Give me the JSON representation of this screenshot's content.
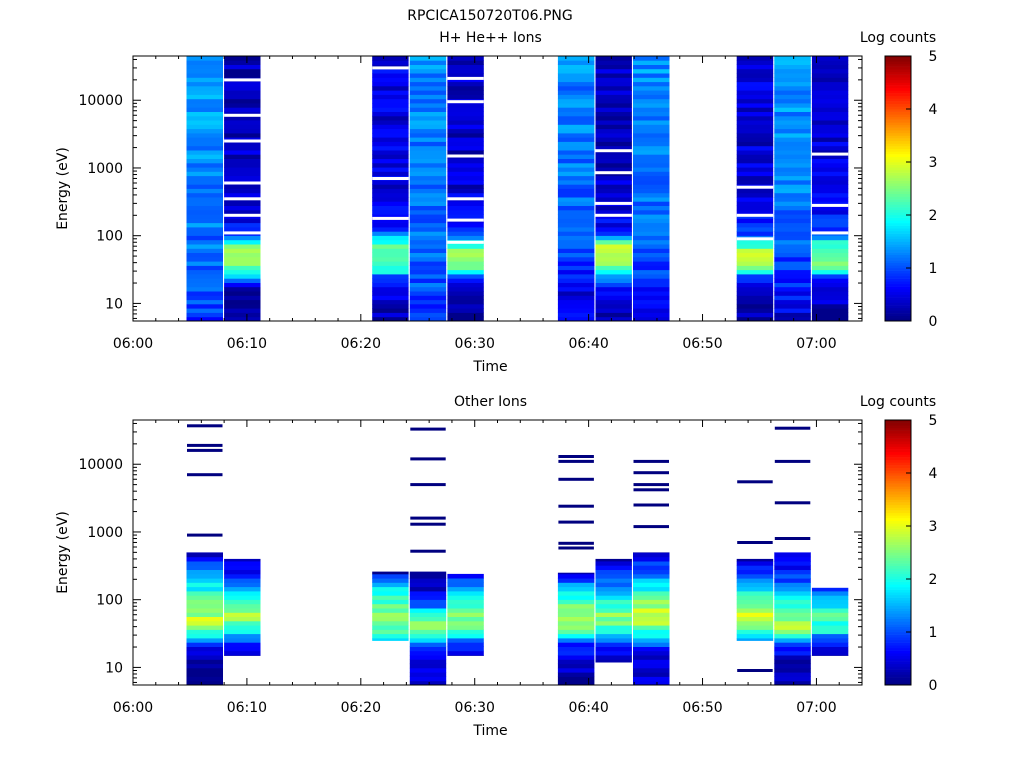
{
  "figure_title": "RPCICA150720T06.PNG",
  "chart_data": [
    {
      "type": "heatmap",
      "title": "H+ He++ Ions",
      "xlabel": "Time",
      "ylabel": "Energy (eV)",
      "x_ticks": [
        "06:00",
        "06:10",
        "06:20",
        "06:30",
        "06:40",
        "06:50",
        "07:00"
      ],
      "xlim_minutes": [
        0,
        64
      ],
      "y_scale": "log",
      "ylim": [
        5.5,
        45000
      ],
      "y_ticks": [
        {
          "value": 10,
          "label": "10"
        },
        {
          "value": 100,
          "label": "100"
        },
        {
          "value": 1000,
          "label": "1000"
        },
        {
          "value": 10000,
          "label": "10000"
        }
      ],
      "colorbar": {
        "label": "Log counts",
        "min": 0,
        "max": 5,
        "ticks": [
          "0",
          "1",
          "2",
          "3",
          "4",
          "5"
        ],
        "colormap": "jet"
      },
      "blocks": [
        {
          "start": "06:04.7",
          "end": "06:07.9",
          "profile": [
            [
              6,
              0.9
            ],
            [
              9,
              1.0
            ],
            [
              15,
              1.05
            ],
            [
              25,
              1.0
            ],
            [
              35,
              1.1
            ],
            [
              50,
              1.2
            ],
            [
              80,
              1.15
            ],
            [
              200,
              1.25
            ],
            [
              1000,
              1.3
            ],
            [
              5000,
              1.35
            ],
            [
              45000,
              1.4
            ]
          ],
          "gaps": []
        },
        {
          "start": "06:08.0",
          "end": "06:11.2",
          "profile": [
            [
              6,
              0.1
            ],
            [
              15,
              0.2
            ],
            [
              20,
              0.5
            ],
            [
              25,
              1.5
            ],
            [
              30,
              2.3
            ],
            [
              45,
              2.75
            ],
            [
              65,
              2.6
            ],
            [
              90,
              1.8
            ],
            [
              110,
              0.7
            ],
            [
              300,
              0.4
            ],
            [
              3000,
              0.3
            ],
            [
              45000,
              0.25
            ]
          ],
          "gaps": [
            20000,
            6000,
            2500,
            600,
            350,
            200,
            110
          ]
        },
        {
          "start": "06:21.0",
          "end": "06:24.2",
          "profile": [
            [
              6,
              0.3
            ],
            [
              15,
              0.4
            ],
            [
              25,
              0.9
            ],
            [
              30,
              2.0
            ],
            [
              45,
              2.5
            ],
            [
              60,
              2.45
            ],
            [
              80,
              2.1
            ],
            [
              100,
              1.4
            ],
            [
              130,
              0.8
            ],
            [
              300,
              0.5
            ],
            [
              3000,
              0.45
            ],
            [
              45000,
              0.5
            ]
          ],
          "gaps": [
            30000,
            700,
            180
          ]
        },
        {
          "start": "06:24.3",
          "end": "06:27.5",
          "profile": [
            [
              6,
              0.9
            ],
            [
              15,
              1.0
            ],
            [
              30,
              1.1
            ],
            [
              60,
              1.2
            ],
            [
              100,
              1.1
            ],
            [
              300,
              1.15
            ],
            [
              1000,
              1.2
            ],
            [
              5000,
              1.25
            ],
            [
              45000,
              1.3
            ]
          ],
          "gaps": []
        },
        {
          "start": "06:27.6",
          "end": "06:30.8",
          "profile": [
            [
              6,
              0.1
            ],
            [
              15,
              0.2
            ],
            [
              25,
              1.0
            ],
            [
              30,
              2.2
            ],
            [
              45,
              2.7
            ],
            [
              60,
              2.6
            ],
            [
              80,
              2.0
            ],
            [
              100,
              1.0
            ],
            [
              300,
              0.45
            ],
            [
              3000,
              0.35
            ],
            [
              45000,
              0.35
            ]
          ],
          "gaps": [
            21000,
            9500,
            1500,
            350,
            170,
            80
          ]
        },
        {
          "start": "06:37.3",
          "end": "06:40.5",
          "profile": [
            [
              6,
              0.6
            ],
            [
              15,
              0.5
            ],
            [
              30,
              0.8
            ],
            [
              60,
              1.0
            ],
            [
              100,
              1.0
            ],
            [
              300,
              1.1
            ],
            [
              1000,
              1.2
            ],
            [
              5000,
              1.25
            ],
            [
              45000,
              1.3
            ]
          ],
          "gaps": []
        },
        {
          "start": "06:40.6",
          "end": "06:43.8",
          "profile": [
            [
              6,
              0.2
            ],
            [
              10,
              0.4
            ],
            [
              20,
              0.8
            ],
            [
              30,
              2.0
            ],
            [
              40,
              2.6
            ],
            [
              70,
              2.65
            ],
            [
              90,
              1.7
            ],
            [
              120,
              0.7
            ],
            [
              300,
              0.35
            ],
            [
              3000,
              0.3
            ],
            [
              45000,
              0.3
            ]
          ],
          "gaps": [
            1800,
            850,
            300,
            200
          ]
        },
        {
          "start": "06:43.9",
          "end": "06:47.1",
          "profile": [
            [
              6,
              0.6
            ],
            [
              15,
              0.7
            ],
            [
              30,
              0.9
            ],
            [
              60,
              1.05
            ],
            [
              100,
              1.15
            ],
            [
              300,
              1.2
            ],
            [
              1000,
              1.25
            ],
            [
              5000,
              1.3
            ],
            [
              45000,
              1.35
            ]
          ],
          "gaps": []
        },
        {
          "start": "06:53.0",
          "end": "06:56.2",
          "profile": [
            [
              6,
              0.2
            ],
            [
              15,
              0.4
            ],
            [
              25,
              1.0
            ],
            [
              30,
              2.3
            ],
            [
              45,
              3.0
            ],
            [
              60,
              2.7
            ],
            [
              80,
              1.8
            ],
            [
              100,
              1.0
            ],
            [
              300,
              0.5
            ],
            [
              3000,
              0.4
            ],
            [
              45000,
              0.45
            ]
          ],
          "gaps": [
            520,
            200,
            90
          ]
        },
        {
          "start": "06:56.3",
          "end": "06:59.5",
          "profile": [
            [
              6,
              0.4
            ],
            [
              15,
              0.7
            ],
            [
              30,
              0.9
            ],
            [
              60,
              1.0
            ],
            [
              100,
              1.1
            ],
            [
              300,
              1.2
            ],
            [
              1000,
              1.3
            ],
            [
              5000,
              1.35
            ],
            [
              45000,
              1.4
            ]
          ],
          "gaps": []
        },
        {
          "start": "06:59.6",
          "end": "07:02.8",
          "profile": [
            [
              6,
              0.2
            ],
            [
              15,
              0.4
            ],
            [
              25,
              1.0
            ],
            [
              30,
              2.2
            ],
            [
              45,
              2.5
            ],
            [
              60,
              2.4
            ],
            [
              80,
              1.9
            ],
            [
              100,
              1.1
            ],
            [
              300,
              0.5
            ],
            [
              3000,
              0.4
            ],
            [
              45000,
              0.45
            ]
          ],
          "gaps": [
            1600,
            280,
            110
          ]
        }
      ]
    },
    {
      "type": "heatmap",
      "title": "Other Ions",
      "xlabel": "Time",
      "ylabel": "Energy (eV)",
      "x_ticks": [
        "06:00",
        "06:10",
        "06:20",
        "06:30",
        "06:40",
        "06:50",
        "07:00"
      ],
      "xlim_minutes": [
        0,
        64
      ],
      "y_scale": "log",
      "ylim": [
        5.5,
        45000
      ],
      "y_ticks": [
        {
          "value": 10,
          "label": "10"
        },
        {
          "value": 100,
          "label": "100"
        },
        {
          "value": 1000,
          "label": "1000"
        },
        {
          "value": 10000,
          "label": "10000"
        }
      ],
      "colorbar": {
        "label": "Log counts",
        "min": 0,
        "max": 5,
        "ticks": [
          "0",
          "1",
          "2",
          "3",
          "4",
          "5"
        ],
        "colormap": "jet"
      },
      "blocks": [
        {
          "start": "06:04.7",
          "end": "06:07.9",
          "range": [
            5.5,
            500
          ],
          "profile": [
            [
              6,
              0.1
            ],
            [
              12,
              0.3
            ],
            [
              20,
              0.6
            ],
            [
              25,
              1.3
            ],
            [
              35,
              2.2
            ],
            [
              50,
              2.8
            ],
            [
              100,
              2.3
            ],
            [
              200,
              1.6
            ],
            [
              350,
              0.8
            ],
            [
              500,
              0.3
            ]
          ],
          "lines": [
            37000,
            19000,
            16000,
            7000,
            900
          ]
        },
        {
          "start": "06:08.0",
          "end": "06:11.2",
          "range": [
            15,
            400
          ],
          "profile": [
            [
              15,
              0.2
            ],
            [
              25,
              1.0
            ],
            [
              35,
              2.2
            ],
            [
              60,
              2.6
            ],
            [
              100,
              2.2
            ],
            [
              200,
              1.0
            ],
            [
              400,
              0.3
            ]
          ],
          "lines": []
        },
        {
          "start": "06:21.0",
          "end": "06:24.2",
          "range": [
            25,
            260
          ],
          "profile": [
            [
              25,
              1.5
            ],
            [
              40,
              2.4
            ],
            [
              70,
              2.5
            ],
            [
              120,
              2.0
            ],
            [
              200,
              1.2
            ],
            [
              260,
              0.3
            ]
          ],
          "lines": []
        },
        {
          "start": "06:24.3",
          "end": "06:27.5",
          "range": [
            5.5,
            260
          ],
          "profile": [
            [
              6,
              0.4
            ],
            [
              15,
              0.6
            ],
            [
              25,
              1.5
            ],
            [
              40,
              2.9
            ],
            [
              60,
              2.2
            ],
            [
              100,
              0.6
            ],
            [
              180,
              0.3
            ],
            [
              260,
              0.2
            ]
          ],
          "lines": [
            33000,
            12000,
            5000,
            1600,
            1300,
            520
          ]
        },
        {
          "start": "06:27.6",
          "end": "06:30.8",
          "range": [
            15,
            240
          ],
          "profile": [
            [
              15,
              0.2
            ],
            [
              25,
              1.2
            ],
            [
              35,
              2.3
            ],
            [
              60,
              2.6
            ],
            [
              120,
              1.8
            ],
            [
              240,
              0.5
            ]
          ],
          "lines": []
        },
        {
          "start": "06:37.3",
          "end": "06:40.5",
          "range": [
            5.5,
            250
          ],
          "profile": [
            [
              6,
              0.2
            ],
            [
              12,
              0.3
            ],
            [
              25,
              1.0
            ],
            [
              35,
              2.5
            ],
            [
              55,
              2.8
            ],
            [
              100,
              2.1
            ],
            [
              200,
              1.0
            ],
            [
              250,
              0.4
            ]
          ],
          "lines": [
            13000,
            11000,
            6000,
            2400,
            1400,
            680,
            580
          ]
        },
        {
          "start": "06:40.6",
          "end": "06:43.8",
          "range": [
            12,
            400
          ],
          "profile": [
            [
              12,
              0.2
            ],
            [
              25,
              1.0
            ],
            [
              35,
              2.2
            ],
            [
              60,
              2.6
            ],
            [
              100,
              2.0
            ],
            [
              200,
              1.0
            ],
            [
              400,
              0.3
            ]
          ],
          "lines": []
        },
        {
          "start": "06:43.9",
          "end": "06:47.1",
          "range": [
            5.5,
            500
          ],
          "profile": [
            [
              6,
              0.4
            ],
            [
              15,
              0.3
            ],
            [
              25,
              1.2
            ],
            [
              40,
              2.6
            ],
            [
              70,
              2.9
            ],
            [
              120,
              2.1
            ],
            [
              300,
              1.0
            ],
            [
              500,
              0.3
            ]
          ],
          "lines": [
            11000,
            7500,
            5000,
            4200,
            2500,
            1200
          ]
        },
        {
          "start": "06:53.0",
          "end": "06:56.2",
          "range": [
            25,
            400
          ],
          "profile": [
            [
              25,
              1.3
            ],
            [
              35,
              2.4
            ],
            [
              60,
              2.8
            ],
            [
              100,
              2.2
            ],
            [
              250,
              1.0
            ],
            [
              400,
              0.3
            ]
          ],
          "lines": [
            5500,
            700,
            9
          ]
        },
        {
          "start": "06:56.3",
          "end": "06:59.5",
          "range": [
            5.5,
            500
          ],
          "profile": [
            [
              6,
              0.2
            ],
            [
              15,
              0.4
            ],
            [
              25,
              1.2
            ],
            [
              35,
              2.7
            ],
            [
              60,
              2.5
            ],
            [
              120,
              1.6
            ],
            [
              300,
              0.6
            ],
            [
              500,
              0.3
            ]
          ],
          "lines": [
            34000,
            11000,
            2700,
            800
          ]
        },
        {
          "start": "06:59.6",
          "end": "07:02.8",
          "range": [
            15,
            150
          ],
          "profile": [
            [
              15,
              0.2
            ],
            [
              25,
              0.8
            ],
            [
              35,
              2.0
            ],
            [
              60,
              2.2
            ],
            [
              100,
              1.7
            ],
            [
              150,
              0.5
            ]
          ],
          "lines": []
        }
      ]
    }
  ]
}
